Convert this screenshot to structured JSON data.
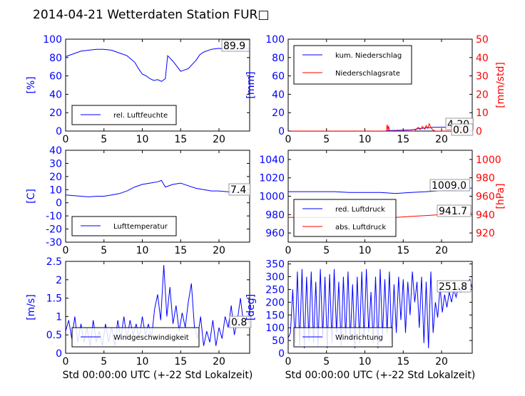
{
  "title": "2014-04-21 Wetterdaten Station FUR□",
  "xlabel": "Std 00:00:00 UTC (+-22 Std Lokalzeit)",
  "colors": {
    "primary": "#0000ff",
    "secondary": "#ff0000",
    "axis": "#000000"
  },
  "chart_data": [
    {
      "id": "humidity",
      "type": "line",
      "xlim": [
        0,
        24
      ],
      "ylim": [
        0,
        100
      ],
      "yticks": [
        0,
        20,
        40,
        60,
        80,
        100
      ],
      "ylabel": "[%]",
      "xticks": [
        0,
        5,
        10,
        15,
        20
      ],
      "xlabel": "",
      "annotation": "89.9",
      "legend_position": "lower-left",
      "series": [
        {
          "name": "rel. Luftfeuchte",
          "color": "#0000ff",
          "axis": "left",
          "x": [
            0,
            1,
            2,
            3,
            4,
            5,
            6,
            7,
            8,
            9,
            9.5,
            10,
            10.5,
            11,
            11.5,
            12,
            12.5,
            13,
            13.3,
            14,
            15,
            16,
            17,
            17.5,
            18,
            19,
            20,
            21,
            22,
            23,
            24
          ],
          "y": [
            81,
            84,
            87,
            88,
            89,
            89,
            88,
            85,
            82,
            75,
            68,
            62,
            60,
            57,
            55,
            56,
            54,
            57,
            82,
            76,
            65,
            68,
            77,
            83,
            86,
            89,
            90,
            89,
            89,
            90,
            90
          ]
        }
      ]
    },
    {
      "id": "precipitation",
      "type": "line",
      "xlim": [
        0,
        24
      ],
      "ylim": [
        0,
        100
      ],
      "yticks": [
        0,
        20,
        40,
        60,
        80,
        100
      ],
      "ylabel": "[mm]",
      "ylim2": [
        0,
        50
      ],
      "yticks2": [
        0,
        10,
        20,
        30,
        40,
        50
      ],
      "ylabel2": "[mm/std]",
      "xticks": [
        0,
        5,
        10,
        15,
        20
      ],
      "xlabel": "",
      "annotations": [
        "4.20",
        "0.0"
      ],
      "legend_position": "upper-left",
      "series": [
        {
          "name": "kum. Niederschlag",
          "color": "#0000ff",
          "axis": "left",
          "x": [
            0,
            12.8,
            13,
            16,
            17,
            18,
            19,
            20,
            24
          ],
          "y": [
            0,
            0,
            0.5,
            1.2,
            2.5,
            3.5,
            4.0,
            4.2,
            4.2
          ]
        },
        {
          "name": "Niederschlagsrate",
          "color": "#ff0000",
          "axis": "right",
          "x": [
            0,
            12.8,
            12.9,
            13.0,
            13.1,
            13.2,
            16.5,
            16.8,
            17.0,
            17.2,
            17.5,
            17.8,
            18.0,
            18.2,
            18.4,
            18.6,
            18.9,
            19.2,
            24
          ],
          "y": [
            0,
            0,
            3.5,
            0.5,
            2.8,
            0,
            0,
            1.5,
            2.0,
            0.8,
            2.5,
            1.0,
            3.0,
            1.5,
            4.0,
            1.8,
            0.5,
            0,
            0
          ]
        }
      ]
    },
    {
      "id": "temperature",
      "type": "line",
      "xlim": [
        0,
        24
      ],
      "ylim": [
        -30,
        40
      ],
      "yticks": [
        -30,
        -20,
        -10,
        0,
        10,
        20,
        30,
        40
      ],
      "ylabel": "[C]",
      "xticks": [
        0,
        5,
        10,
        15,
        20
      ],
      "xlabel": "",
      "annotation": "7.4",
      "legend_position": "lower-left",
      "series": [
        {
          "name": "Lufttemperatur",
          "color": "#0000ff",
          "axis": "left",
          "x": [
            0,
            1,
            2,
            3,
            4,
            5,
            6,
            7,
            8,
            9,
            10,
            11,
            12,
            12.5,
            13,
            14,
            15,
            16,
            17,
            18,
            19,
            20,
            21,
            22,
            23,
            24
          ],
          "y": [
            6,
            5.5,
            5,
            4.5,
            5,
            5,
            6,
            7,
            9,
            12,
            14,
            15,
            16,
            17,
            12,
            14,
            15,
            13,
            11,
            10,
            9,
            9,
            8.5,
            8,
            7.5,
            7.4
          ]
        }
      ]
    },
    {
      "id": "pressure",
      "type": "line",
      "xlim": [
        0,
        24
      ],
      "ylim": [
        950,
        1050
      ],
      "yticks": [
        960,
        980,
        1000,
        1020,
        1040
      ],
      "ylabel": "",
      "ylim2": [
        910,
        1010
      ],
      "yticks2": [
        920,
        940,
        960,
        980,
        1000
      ],
      "ylabel2": "[hPa]",
      "xticks": [
        0,
        5,
        10,
        15,
        20
      ],
      "xlabel": "",
      "annotations": [
        "1009.0",
        "941.7"
      ],
      "legend_position": "lower-left",
      "series": [
        {
          "name": "red. Luftdruck",
          "color": "#0000ff",
          "axis": "left",
          "x": [
            0,
            2,
            4,
            6,
            8,
            10,
            12,
            14,
            16,
            18,
            20,
            22,
            24
          ],
          "y": [
            1005,
            1005,
            1005,
            1005,
            1004,
            1004,
            1004,
            1003,
            1004,
            1005,
            1006,
            1007,
            1009
          ]
        },
        {
          "name": "abs. Luftdruck",
          "color": "#ff0000",
          "axis": "right",
          "x": [
            0,
            2,
            4,
            6,
            8,
            10,
            12,
            14,
            16,
            18,
            20,
            22,
            24
          ],
          "y": [
            937,
            937,
            937,
            937,
            937,
            937,
            937,
            937,
            938,
            939,
            940,
            941,
            941.7
          ]
        }
      ]
    },
    {
      "id": "windspeed",
      "type": "line",
      "xlim": [
        0,
        24
      ],
      "ylim": [
        0,
        2.5
      ],
      "yticks": [
        0,
        0.5,
        1.0,
        1.5,
        2.0,
        2.5
      ],
      "ylabel": "[m/s]",
      "xticks": [
        0,
        5,
        10,
        15,
        20
      ],
      "xlabel": "Std 00:00:00 UTC (+-22 Std Lokalzeit)",
      "annotation": "0.8",
      "legend_position": "lower-left",
      "series": [
        {
          "name": "Windgeschwindigkeit",
          "color": "#0000ff",
          "axis": "left",
          "x": [
            0,
            0.4,
            0.8,
            1.2,
            1.6,
            2,
            2.4,
            2.8,
            3.2,
            3.6,
            4,
            4.4,
            4.8,
            5.2,
            5.6,
            6,
            6.4,
            6.8,
            7.2,
            7.6,
            8,
            8.4,
            8.8,
            9.2,
            9.6,
            10,
            10.4,
            10.8,
            11.2,
            11.6,
            12,
            12.4,
            12.8,
            13.2,
            13.6,
            14,
            14.4,
            14.8,
            15.2,
            15.6,
            16,
            16.4,
            16.8,
            17.2,
            17.6,
            18,
            18.4,
            18.8,
            19.2,
            19.6,
            20,
            20.4,
            20.8,
            21.2,
            21.6,
            22,
            22.4,
            22.8,
            23.2,
            23.6,
            24
          ],
          "y": [
            0.6,
            0.9,
            0.4,
            1.0,
            0.3,
            0.8,
            0.3,
            0.7,
            0.2,
            0.9,
            0.3,
            0.6,
            0.2,
            0.8,
            0.3,
            0.7,
            0.2,
            0.9,
            0.4,
            1.0,
            0.4,
            0.9,
            0.5,
            0.8,
            0.4,
            1.0,
            0.5,
            0.8,
            0.4,
            1.2,
            1.6,
            0.9,
            2.4,
            1.0,
            1.8,
            0.8,
            1.3,
            0.6,
            1.1,
            0.7,
            1.4,
            1.9,
            0.7,
            0.4,
            1.0,
            0.2,
            0.6,
            0.3,
            0.9,
            0.2,
            0.7,
            0.4,
            1.0,
            0.7,
            1.3,
            0.5,
            0.9,
            1.5,
            0.8,
            1.0,
            0.8
          ]
        }
      ]
    },
    {
      "id": "winddirection",
      "type": "line",
      "xlim": [
        0,
        24
      ],
      "ylim": [
        0,
        360
      ],
      "yticks": [
        0,
        50,
        100,
        150,
        200,
        250,
        300,
        350
      ],
      "ylabel": "[deg]",
      "xticks": [
        0,
        5,
        10,
        15,
        20
      ],
      "xlabel": "Std 00:00:00 UTC (+-22 Std Lokalzeit)",
      "annotation": "251.8",
      "legend_position": "lower-left",
      "series": [
        {
          "name": "Windrichtung",
          "color": "#0000ff",
          "axis": "left",
          "x": [
            0,
            0.3,
            0.6,
            0.9,
            1.2,
            1.5,
            1.8,
            2.1,
            2.4,
            2.7,
            3,
            3.3,
            3.6,
            3.9,
            4.2,
            4.5,
            4.8,
            5.1,
            5.4,
            5.7,
            6,
            6.3,
            6.6,
            6.9,
            7.2,
            7.5,
            7.8,
            8.1,
            8.4,
            8.7,
            9,
            9.3,
            9.6,
            9.9,
            10.2,
            10.5,
            10.8,
            11.1,
            11.4,
            11.7,
            12,
            12.3,
            12.6,
            12.9,
            13.2,
            13.5,
            13.8,
            14.1,
            14.4,
            14.7,
            15,
            15.3,
            15.6,
            15.9,
            16.2,
            16.5,
            16.8,
            17.1,
            17.4,
            17.7,
            18,
            18.3,
            18.6,
            18.9,
            19.2,
            19.5,
            19.8,
            20.1,
            20.4,
            20.7,
            21,
            21.3,
            21.6,
            21.9,
            22.2,
            22.5,
            22.8,
            23.1,
            23.4,
            23.7,
            24
          ],
          "y": [
            60,
            80,
            250,
            40,
            320,
            30,
            330,
            20,
            300,
            50,
            320,
            40,
            280,
            30,
            330,
            60,
            300,
            20,
            310,
            40,
            330,
            80,
            280,
            30,
            300,
            60,
            320,
            50,
            270,
            20,
            300,
            40,
            320,
            60,
            330,
            80,
            240,
            40,
            300,
            20,
            330,
            60,
            290,
            80,
            320,
            40,
            270,
            80,
            300,
            130,
            290,
            80,
            280,
            150,
            320,
            200,
            280,
            100,
            300,
            40,
            280,
            20,
            320,
            80,
            200,
            140,
            260,
            160,
            230,
            180,
            240,
            200,
            250,
            220,
            260,
            240,
            270,
            250,
            280,
            290,
            252
          ]
        }
      ]
    }
  ]
}
